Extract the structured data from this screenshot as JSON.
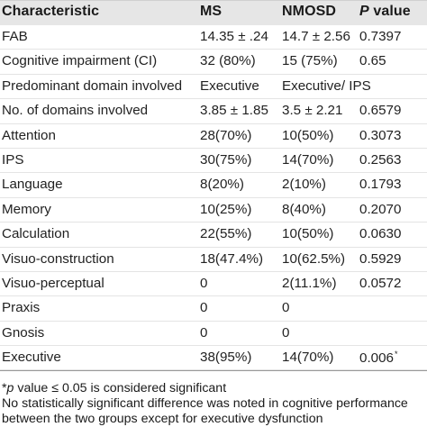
{
  "table": {
    "headers": {
      "characteristic": "Characteristic",
      "ms": "MS",
      "nmosd": "NMOSD",
      "p_letter": "P",
      "p_rest": " value"
    },
    "rows": [
      {
        "characteristic": "FAB",
        "ms": "14.35 ± .24",
        "nmosd": "14.7 ± 2.56",
        "p": "0.7397",
        "star": ""
      },
      {
        "characteristic": "Cognitive impairment (CI)",
        "ms": "32 (80%)",
        "nmosd": "15 (75%)",
        "p": "0.65",
        "star": ""
      },
      {
        "characteristic": "Predominant domain involved",
        "ms": "Executive",
        "nmosd": "Executive/ IPS",
        "p": "",
        "star": ""
      },
      {
        "characteristic": "No. of domains involved",
        "ms": "3.85 ± 1.85",
        "nmosd": "3.5 ± 2.21",
        "p": "0.6579",
        "star": ""
      },
      {
        "characteristic": "Attention",
        "ms": "28(70%)",
        "nmosd": "10(50%)",
        "p": "0.3073",
        "star": ""
      },
      {
        "characteristic": "IPS",
        "ms": "30(75%)",
        "nmosd": "14(70%)",
        "p": "0.2563",
        "star": ""
      },
      {
        "characteristic": "Language",
        "ms": "8(20%)",
        "nmosd": "2(10%)",
        "p": "0.1793",
        "star": ""
      },
      {
        "characteristic": "Memory",
        "ms": "10(25%)",
        "nmosd": "8(40%)",
        "p": "0.2070",
        "star": ""
      },
      {
        "characteristic": "Calculation",
        "ms": "22(55%)",
        "nmosd": "10(50%)",
        "p": "0.0630",
        "star": ""
      },
      {
        "characteristic": "Visuo-construction",
        "ms": "18(47.4%)",
        "nmosd": "10(62.5%)",
        "p": "0.5929",
        "star": ""
      },
      {
        "characteristic": "Visuo-perceptual",
        "ms": "0",
        "nmosd": "2(11.1%)",
        "p": "0.0572",
        "star": ""
      },
      {
        "characteristic": "Praxis",
        "ms": "0",
        "nmosd": "0",
        "p": "",
        "star": ""
      },
      {
        "characteristic": "Gnosis",
        "ms": "0",
        "nmosd": "0",
        "p": "",
        "star": ""
      },
      {
        "characteristic": "Executive",
        "ms": "38(95%)",
        "nmosd": "14(70%)",
        "p": "0.006",
        "star": "*"
      }
    ]
  },
  "footnotes": {
    "line1_star": "*",
    "line1_p": "p",
    "line1_rest": " value ≤ 0.05 is considered significant",
    "line2": "No statistically significant difference was noted in cognitive performance",
    "line3": "between the two groups except for executive dysfunction"
  }
}
